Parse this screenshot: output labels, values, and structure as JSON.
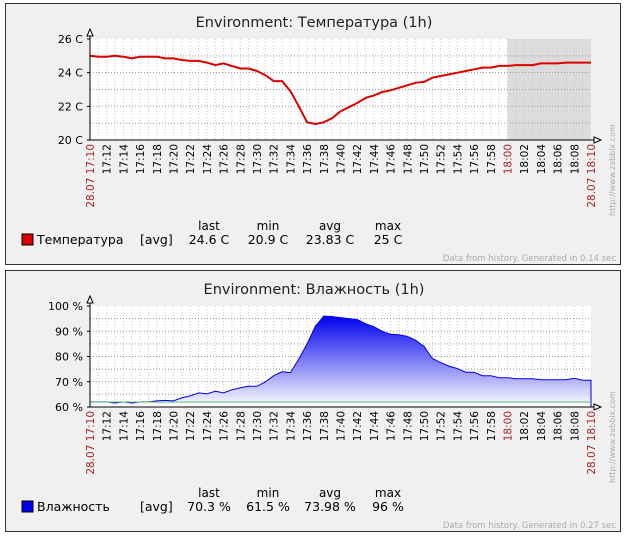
{
  "chart_data": [
    {
      "type": "line",
      "title": "Environment: Температура (1h)",
      "y_unit": "C",
      "ylim": [
        20,
        26
      ],
      "yticks": [
        20,
        22,
        24,
        26
      ],
      "ytick_labels": [
        "20 C",
        "22 C",
        "24 C",
        "26 C"
      ],
      "x_start_label": "28.07 17:10",
      "x_end_label": "28.07 18:10",
      "x_tick_labels": [
        "17:12",
        "17:14",
        "17:16",
        "17:18",
        "17:20",
        "17:22",
        "17:24",
        "17:26",
        "17:28",
        "17:30",
        "17:32",
        "17:34",
        "17:36",
        "17:38",
        "17:40",
        "17:42",
        "17:44",
        "17:46",
        "17:48",
        "17:50",
        "17:52",
        "17:54",
        "17:56",
        "17:58",
        "18:00",
        "18:02",
        "18:04",
        "18:06",
        "18:08"
      ],
      "x_highlight_label": "18:00",
      "no_data_from": "18:00",
      "grid": true,
      "x": [
        "17:10",
        "17:11",
        "17:12",
        "17:13",
        "17:14",
        "17:15",
        "17:16",
        "17:17",
        "17:18",
        "17:19",
        "17:20",
        "17:21",
        "17:22",
        "17:23",
        "17:24",
        "17:25",
        "17:26",
        "17:27",
        "17:28",
        "17:29",
        "17:30",
        "17:31",
        "17:32",
        "17:33",
        "17:34",
        "17:35",
        "17:36",
        "17:37",
        "17:38",
        "17:39",
        "17:40",
        "17:41",
        "17:42",
        "17:43",
        "17:44",
        "17:45",
        "17:46",
        "17:47",
        "17:48",
        "17:49",
        "17:50",
        "17:51",
        "17:52",
        "17:53",
        "17:54",
        "17:55",
        "17:56",
        "17:57",
        "17:58",
        "17:59",
        "18:00",
        "18:01",
        "18:02",
        "18:03",
        "18:04",
        "18:05",
        "18:06",
        "18:07",
        "18:08",
        "18:09",
        "18:10"
      ],
      "series": [
        {
          "name": "Температура",
          "color": "#dd0000",
          "values": [
            25.0,
            24.95,
            24.95,
            25.0,
            24.95,
            24.85,
            24.95,
            24.95,
            24.95,
            24.85,
            24.85,
            24.75,
            24.7,
            24.7,
            24.6,
            24.45,
            24.55,
            24.4,
            24.25,
            24.25,
            24.1,
            23.85,
            23.5,
            23.5,
            22.9,
            22.0,
            21.05,
            20.95,
            21.05,
            21.3,
            21.7,
            21.95,
            22.2,
            22.5,
            22.65,
            22.85,
            22.95,
            23.1,
            23.25,
            23.4,
            23.45,
            23.7,
            23.8,
            23.9,
            24.0,
            24.1,
            24.2,
            24.3,
            24.3,
            24.4,
            24.4,
            24.45,
            24.45,
            24.45,
            24.55,
            24.55,
            24.55,
            24.6,
            24.6,
            24.6,
            24.6
          ]
        }
      ],
      "legend": {
        "name": "Температура",
        "agg": "[avg]",
        "headers": [
          "last",
          "min",
          "avg",
          "max"
        ],
        "values": [
          "24.6 C",
          "20.9 C",
          "23.83 C",
          "25 C"
        ]
      },
      "footer": "Data from history. Generated in 0.14 sec",
      "watermark": "http://www.zabbix.com"
    },
    {
      "type": "area",
      "title": "Environment: Влажность (1h)",
      "y_unit": "%",
      "ylim": [
        60,
        100
      ],
      "yticks": [
        60,
        70,
        80,
        90,
        100
      ],
      "ytick_labels": [
        "60 %",
        "70 %",
        "80 %",
        "90 %",
        "100 %"
      ],
      "x_start_label": "28.07 17:10",
      "x_end_label": "28.07 18:10",
      "x_tick_labels": [
        "17:12",
        "17:14",
        "17:16",
        "17:18",
        "17:20",
        "17:22",
        "17:24",
        "17:26",
        "17:28",
        "17:30",
        "17:32",
        "17:34",
        "17:36",
        "17:38",
        "17:40",
        "17:42",
        "17:44",
        "17:46",
        "17:48",
        "17:50",
        "17:52",
        "17:54",
        "17:56",
        "17:58",
        "18:00",
        "18:02",
        "18:04",
        "18:06",
        "18:08"
      ],
      "x_highlight_label": "18:00",
      "grid": true,
      "x": [
        "17:10",
        "17:11",
        "17:12",
        "17:13",
        "17:14",
        "17:15",
        "17:16",
        "17:17",
        "17:18",
        "17:19",
        "17:20",
        "17:21",
        "17:22",
        "17:23",
        "17:24",
        "17:25",
        "17:26",
        "17:27",
        "17:28",
        "17:29",
        "17:30",
        "17:31",
        "17:32",
        "17:33",
        "17:34",
        "17:35",
        "17:36",
        "17:37",
        "17:38",
        "17:39",
        "17:40",
        "17:41",
        "17:42",
        "17:43",
        "17:44",
        "17:45",
        "17:46",
        "17:47",
        "17:48",
        "17:49",
        "17:50",
        "17:51",
        "17:52",
        "17:53",
        "17:54",
        "17:55",
        "17:56",
        "17:57",
        "17:58",
        "17:59",
        "18:00",
        "18:01",
        "18:02",
        "18:03",
        "18:04",
        "18:05",
        "18:06",
        "18:07",
        "18:08",
        "18:09",
        "18:10"
      ],
      "series": [
        {
          "name": "Влажность",
          "color": "#0000ee",
          "values": [
            62.0,
            62.0,
            62.0,
            61.6,
            62.0,
            61.6,
            62.0,
            62.0,
            62.4,
            62.6,
            62.4,
            63.6,
            64.4,
            65.6,
            65.2,
            66.2,
            65.6,
            66.8,
            67.6,
            68.2,
            68.2,
            70.0,
            72.4,
            74.0,
            73.6,
            79.0,
            85.0,
            92.0,
            96.0,
            95.8,
            95.4,
            95.0,
            94.6,
            93.0,
            91.8,
            90.0,
            88.8,
            88.6,
            88.0,
            86.4,
            84.0,
            79.2,
            77.6,
            76.2,
            75.2,
            73.8,
            73.8,
            72.4,
            72.4,
            71.6,
            71.6,
            71.2,
            71.2,
            71.2,
            70.8,
            70.8,
            70.8,
            70.8,
            71.4,
            70.6,
            70.6
          ]
        }
      ],
      "legend": {
        "name": "Влажность",
        "agg": "[avg]",
        "headers": [
          "last",
          "min",
          "avg",
          "max"
        ],
        "values": [
          "70.3 %",
          "61.5 %",
          "73.98 %",
          "96 %"
        ]
      },
      "footer": "Data from history. Generated in 0.27 sec",
      "watermark": "http://www.zabbix.com"
    }
  ]
}
